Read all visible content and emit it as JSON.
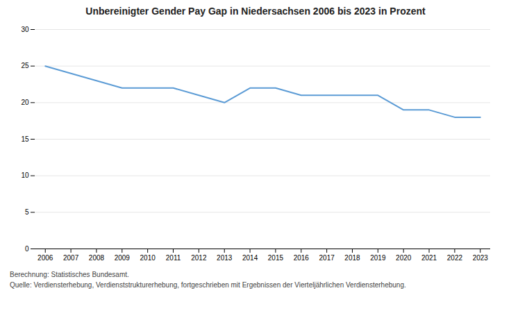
{
  "chart_data": {
    "type": "line",
    "title": "Unbereinigter Gender Pay Gap in Niedersachsen 2006 bis 2023 in Prozent",
    "x": [
      2006,
      2007,
      2008,
      2009,
      2010,
      2011,
      2012,
      2013,
      2014,
      2015,
      2016,
      2017,
      2018,
      2019,
      2020,
      2021,
      2022,
      2023
    ],
    "values": [
      25,
      24,
      23,
      22,
      22,
      22,
      21,
      20,
      22,
      22,
      21,
      21,
      21,
      21,
      19,
      19,
      18,
      18
    ],
    "color": "#5b9bd5",
    "xlim": [
      2005.6,
      2023.4
    ],
    "xticks": [
      2006,
      2007,
      2008,
      2009,
      2010,
      2011,
      2012,
      2013,
      2014,
      2015,
      2016,
      2017,
      2018,
      2019,
      2020,
      2021,
      2022,
      2023
    ],
    "ylim": [
      0,
      30
    ],
    "yticks": [
      0,
      5,
      10,
      15,
      20,
      25,
      30
    ],
    "grid": "y",
    "annotations": [
      "Berechnung: Statistisches Bundesamt.",
      "Quelle: Verdiensterhebung, Verdienststrukturerhebung, fortgeschrieben mit Ergebnissen der Vierteljährlichen Verdiensterhebung."
    ]
  }
}
